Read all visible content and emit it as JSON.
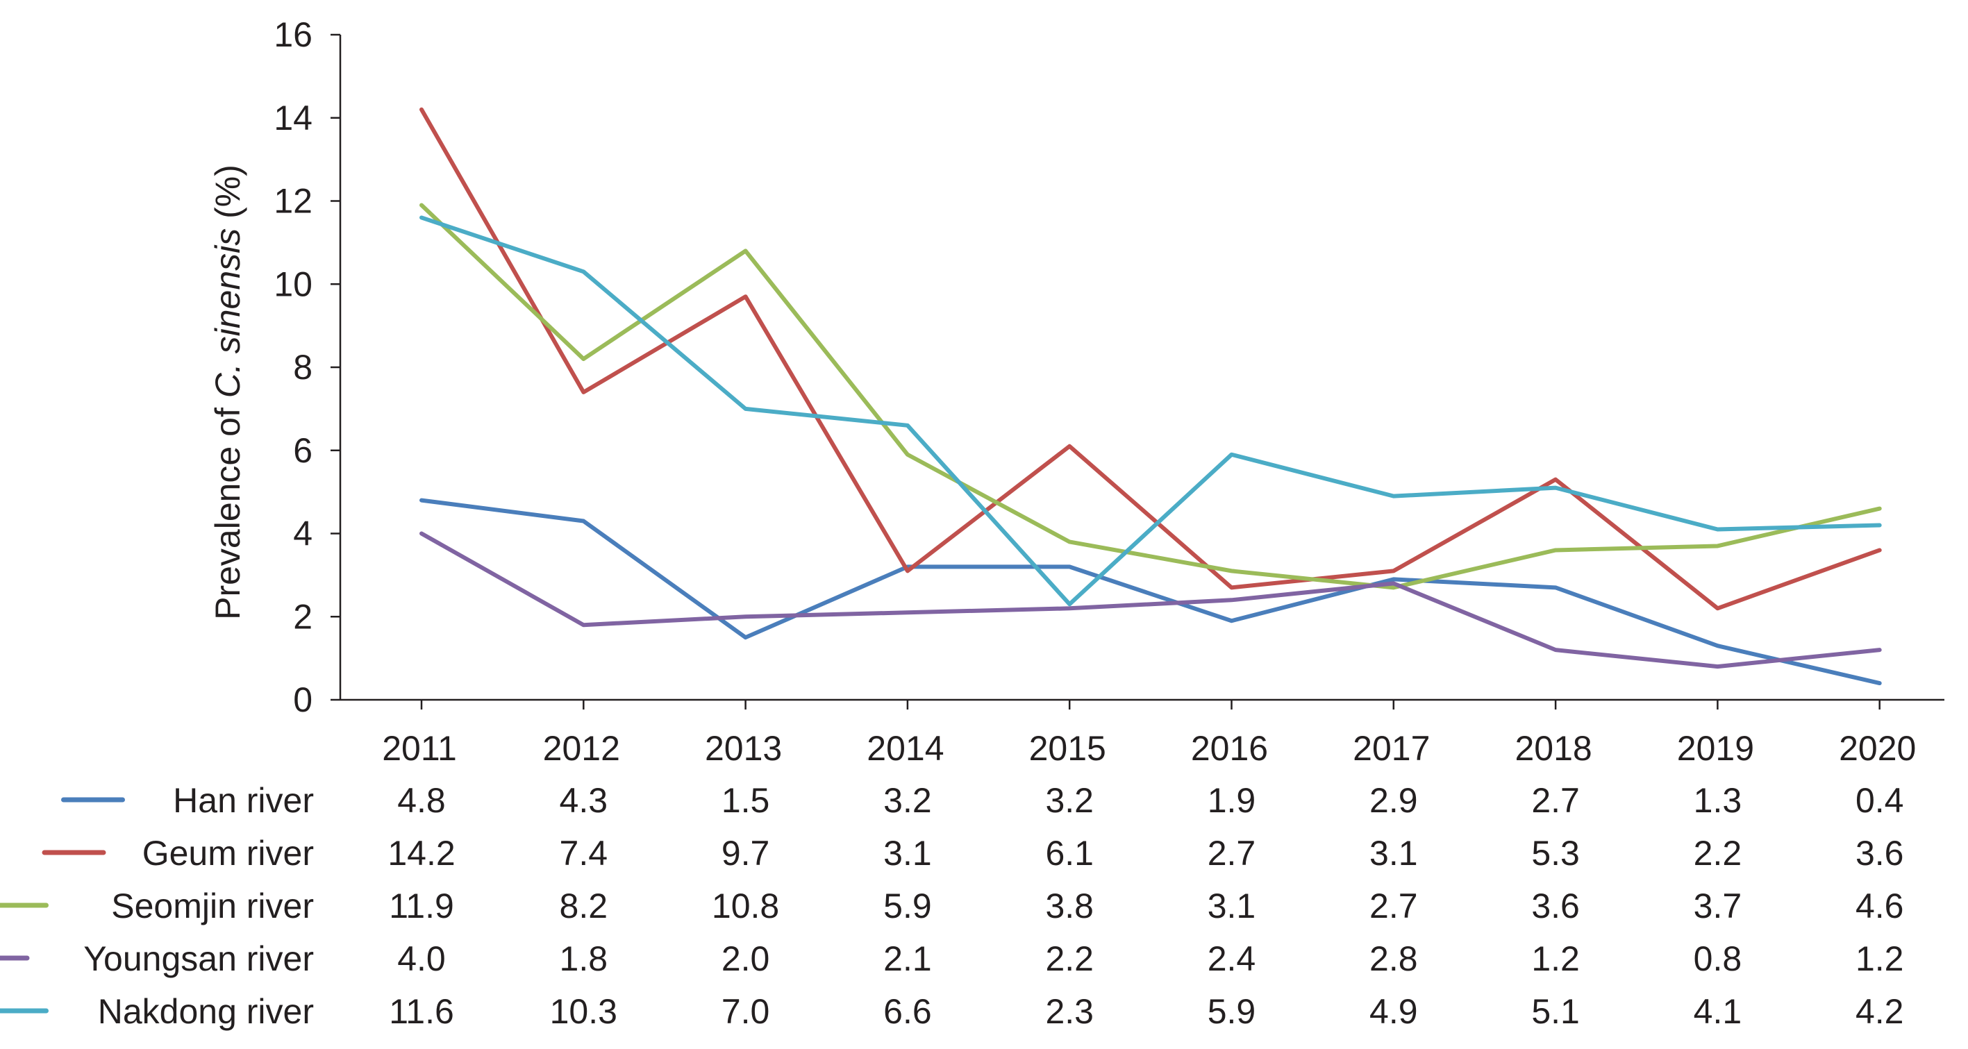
{
  "chart_data": {
    "type": "line",
    "x": [
      "2011",
      "2012",
      "2013",
      "2014",
      "2015",
      "2016",
      "2017",
      "2018",
      "2019",
      "2020"
    ],
    "ylabel": {
      "prefix": "Prevalence of ",
      "italic": "C. sinensis",
      "suffix": " (%)"
    },
    "xlabel": "",
    "ylim": [
      0,
      16
    ],
    "yticks": [
      "0",
      "2",
      "4",
      "6",
      "8",
      "10",
      "12",
      "14",
      "16"
    ],
    "grid": false,
    "legend_position": "data table below the plot",
    "series": [
      {
        "name": "Han river",
        "color": "#4a7ebb",
        "values": [
          4.8,
          4.3,
          1.5,
          3.2,
          3.2,
          1.9,
          2.9,
          2.7,
          1.3,
          0.4
        ],
        "labels": [
          "4.8",
          "4.3",
          "1.5",
          "3.2",
          "3.2",
          "1.9",
          "2.9",
          "2.7",
          "1.3",
          "0.4"
        ]
      },
      {
        "name": "Geum river",
        "color": "#c0504d",
        "values": [
          14.2,
          7.4,
          9.7,
          3.1,
          6.1,
          2.7,
          3.1,
          5.3,
          2.2,
          3.6
        ],
        "labels": [
          "14.2",
          "7.4",
          "9.7",
          "3.1",
          "6.1",
          "2.7",
          "3.1",
          "5.3",
          "2.2",
          "3.6"
        ]
      },
      {
        "name": "Seomjin river",
        "color": "#9bbb59",
        "values": [
          11.9,
          8.2,
          10.8,
          5.9,
          3.8,
          3.1,
          2.7,
          3.6,
          3.7,
          4.6
        ],
        "labels": [
          "11.9",
          "8.2",
          "10.8",
          "5.9",
          "3.8",
          "3.1",
          "2.7",
          "3.6",
          "3.7",
          "4.6"
        ]
      },
      {
        "name": "Youngsan river",
        "color": "#8064a2",
        "values": [
          4.0,
          1.8,
          2.0,
          2.1,
          2.2,
          2.4,
          2.8,
          1.2,
          0.8,
          1.2
        ],
        "labels": [
          "4.0",
          "1.8",
          "2.0",
          "2.1",
          "2.2",
          "2.4",
          "2.8",
          "1.2",
          "0.8",
          "1.2"
        ]
      },
      {
        "name": "Nakdong river",
        "color": "#4bacc6",
        "values": [
          11.6,
          10.3,
          7.0,
          6.6,
          2.3,
          5.9,
          4.9,
          5.1,
          4.1,
          4.2
        ],
        "labels": [
          "11.6",
          "10.3",
          "7.0",
          "6.6",
          "2.3",
          "5.9",
          "4.9",
          "5.1",
          "4.1",
          "4.2"
        ]
      }
    ]
  }
}
